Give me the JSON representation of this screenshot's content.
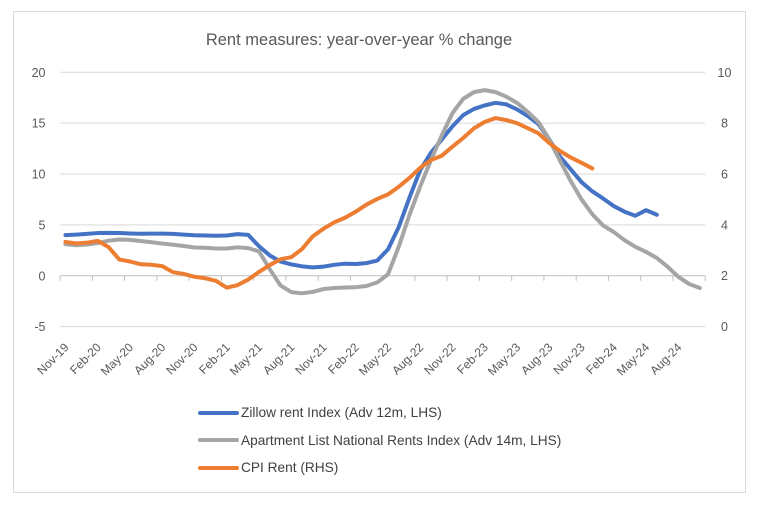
{
  "chart": {
    "title": "Rent measures: year-over-year % change",
    "colors": {
      "background": "#ffffff",
      "border": "#D9D9D9",
      "gridline": "#D9D9D9",
      "axis_line": "#BFBFBF",
      "axis_text": "#595959",
      "legend_text": "#404040"
    }
  },
  "chart_data": {
    "type": "line",
    "title": "Rent measures: year-over-year % change",
    "xlabel": "",
    "ylabel_left": "",
    "ylabel_right": "",
    "grid": true,
    "legend_position": "bottom",
    "categories": [
      "Nov-19",
      "Dec-19",
      "Jan-20",
      "Feb-20",
      "Mar-20",
      "Apr-20",
      "May-20",
      "Jun-20",
      "Jul-20",
      "Aug-20",
      "Sep-20",
      "Oct-20",
      "Nov-20",
      "Dec-20",
      "Jan-21",
      "Feb-21",
      "Mar-21",
      "Apr-21",
      "May-21",
      "Jun-21",
      "Jul-21",
      "Aug-21",
      "Sep-21",
      "Oct-21",
      "Nov-21",
      "Dec-21",
      "Jan-22",
      "Feb-22",
      "Mar-22",
      "Apr-22",
      "May-22",
      "Jun-22",
      "Jul-22",
      "Aug-22",
      "Sep-22",
      "Oct-22",
      "Nov-22",
      "Dec-22",
      "Jan-23",
      "Feb-23",
      "Mar-23",
      "Apr-23",
      "May-23",
      "Jun-23",
      "Jul-23",
      "Aug-23",
      "Sep-23",
      "Oct-23",
      "Nov-23",
      "Dec-23",
      "Jan-24",
      "Feb-24",
      "Mar-24",
      "Apr-24",
      "May-24",
      "Jun-24",
      "Jul-24",
      "Aug-24",
      "Sep-24",
      "Oct-24"
    ],
    "x_tick_labels": [
      "Nov-19",
      "Feb-20",
      "May-20",
      "Aug-20",
      "Nov-20",
      "Feb-21",
      "May-21",
      "Aug-21",
      "Nov-21",
      "Feb-22",
      "May-22",
      "Aug-22",
      "Nov-22",
      "Feb-23",
      "May-23",
      "Aug-23",
      "Nov-23",
      "Feb-24",
      "May-24",
      "Aug-24"
    ],
    "x_label_every": 3,
    "left_axis": {
      "min": -5,
      "max": 20,
      "step": 5,
      "tick_labels": [
        "20",
        "15",
        "10",
        "5",
        "0",
        "-5"
      ]
    },
    "right_axis": {
      "min": 0,
      "max": 10,
      "step": 2,
      "tick_labels": [
        "10",
        "8",
        "6",
        "4",
        "2",
        "0"
      ]
    },
    "series": [
      {
        "name": "Zillow rent Index (Adv 12m, LHS)",
        "color": "#4472C4",
        "axis": "left",
        "values": [
          4.0,
          4.05,
          4.12,
          4.2,
          4.22,
          4.2,
          4.16,
          4.13,
          4.15,
          4.15,
          4.12,
          4.05,
          3.98,
          3.96,
          3.94,
          3.96,
          4.1,
          4.02,
          2.9,
          2.0,
          1.4,
          1.12,
          0.93,
          0.83,
          0.9,
          1.08,
          1.19,
          1.16,
          1.25,
          1.5,
          2.6,
          4.8,
          7.7,
          10.4,
          12.1,
          13.4,
          14.7,
          15.8,
          16.4,
          16.75,
          17.0,
          16.85,
          16.35,
          15.7,
          14.9,
          13.4,
          11.7,
          10.45,
          9.2,
          8.3,
          7.6,
          6.85,
          6.3,
          5.9,
          6.45,
          6.0
        ]
      },
      {
        "name": "Apartment List National Rents Index (Adv 14m, LHS)",
        "color": "#A5A5A5",
        "axis": "left",
        "values": [
          3.1,
          3.0,
          3.08,
          3.22,
          3.45,
          3.57,
          3.53,
          3.42,
          3.3,
          3.17,
          3.05,
          2.93,
          2.78,
          2.76,
          2.68,
          2.68,
          2.8,
          2.72,
          2.4,
          0.65,
          -0.95,
          -1.6,
          -1.72,
          -1.58,
          -1.3,
          -1.2,
          -1.15,
          -1.12,
          -1.0,
          -0.65,
          0.15,
          2.86,
          6.0,
          8.8,
          11.4,
          13.8,
          16.0,
          17.4,
          18.05,
          18.25,
          18.05,
          17.6,
          17.0,
          16.1,
          15.1,
          13.4,
          11.3,
          9.3,
          7.5,
          6.05,
          4.95,
          4.3,
          3.5,
          2.85,
          2.35,
          1.75,
          0.9,
          -0.1,
          -0.8,
          -1.2
        ]
      },
      {
        "name": "CPI Rent (RHS)",
        "color": "#ED7D31",
        "axis": "right",
        "values": [
          3.33,
          3.27,
          3.3,
          3.37,
          3.13,
          2.64,
          2.56,
          2.45,
          2.43,
          2.38,
          2.14,
          2.07,
          1.96,
          1.9,
          1.8,
          1.53,
          1.63,
          1.85,
          2.15,
          2.42,
          2.65,
          2.73,
          3.05,
          3.55,
          3.85,
          4.1,
          4.28,
          4.52,
          4.8,
          5.02,
          5.2,
          5.5,
          5.85,
          6.25,
          6.55,
          6.72,
          7.08,
          7.42,
          7.8,
          8.05,
          8.2,
          8.12,
          8.0,
          7.8,
          7.6,
          7.22,
          6.9,
          6.65,
          6.44,
          6.22
        ]
      }
    ]
  }
}
